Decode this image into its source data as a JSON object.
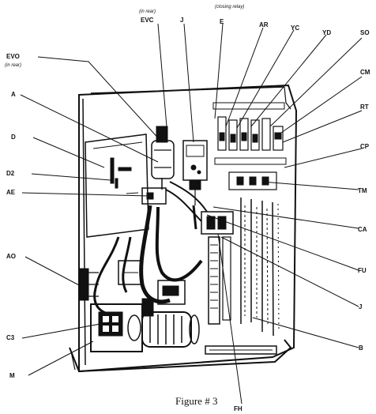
{
  "caption": "Figure # 3",
  "labels": {
    "evo": "EVO",
    "evo_note": "(in rear)",
    "evc_note": "(in rear)",
    "evc": "EVC",
    "j_top": "J",
    "e_note": "(closing relay)",
    "e": "E",
    "ar": "AR",
    "yc": "YC",
    "yd": "YD",
    "so": "SO",
    "cm": "CM",
    "rt": "RT",
    "cp": "CP",
    "tm": "TM",
    "ca": "CA",
    "fu": "FU",
    "j_right": "J",
    "b": "B",
    "a": "A",
    "d": "D",
    "d2": "D2",
    "ae": "AE",
    "ao": "AO",
    "c3": "C3",
    "m": "M",
    "fh": "FH"
  }
}
